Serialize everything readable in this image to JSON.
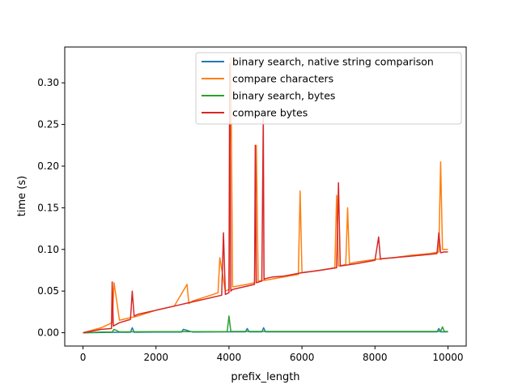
{
  "chart_data": {
    "type": "line",
    "title": "",
    "xlabel": "prefix_length",
    "ylabel": "time (s)",
    "xlim": [
      -500,
      10500
    ],
    "ylim": [
      -0.016,
      0.343
    ],
    "xticks": [
      0,
      2000,
      4000,
      6000,
      8000,
      10000
    ],
    "xtick_labels": [
      "0",
      "2000",
      "4000",
      "6000",
      "8000",
      "10000"
    ],
    "yticks": [
      0.0,
      0.05,
      0.1,
      0.15,
      0.2,
      0.25,
      0.3
    ],
    "ytick_labels": [
      "0.00",
      "0.05",
      "0.10",
      "0.15",
      "0.20",
      "0.25",
      "0.30"
    ],
    "grid": false,
    "legend_position": "top-right",
    "series": [
      {
        "name": "binary search, native string comparison",
        "color": "#1f77b4",
        "x": [
          0,
          1000,
          1300,
          1350,
          1400,
          2000,
          2700,
          2750,
          3000,
          4000,
          4450,
          4500,
          4550,
          4900,
          4950,
          5000,
          6000,
          7000,
          8000,
          9000,
          9700,
          9750,
          9800,
          10000
        ],
        "y": [
          0.0,
          0.0005,
          0.0005,
          0.006,
          0.0005,
          0.0008,
          0.0008,
          0.004,
          0.0008,
          0.001,
          0.001,
          0.005,
          0.001,
          0.001,
          0.006,
          0.001,
          0.001,
          0.001,
          0.001,
          0.001,
          0.001,
          0.005,
          0.001,
          0.001
        ]
      },
      {
        "name": "compare characters",
        "color": "#ff7f0e",
        "x": [
          0,
          500,
          800,
          850,
          1000,
          1500,
          2000,
          2500,
          2850,
          2900,
          3000,
          3500,
          3700,
          3750,
          3900,
          4000,
          4050,
          4100,
          4500,
          4700,
          4750,
          4800,
          5000,
          5500,
          5900,
          5950,
          6000,
          6500,
          6900,
          6950,
          7000,
          7200,
          7250,
          7300,
          7500,
          8000,
          8500,
          9000,
          9500,
          9750,
          9800,
          9850,
          10000
        ],
        "y": [
          0.0,
          0.006,
          0.012,
          0.06,
          0.015,
          0.02,
          0.027,
          0.032,
          0.058,
          0.035,
          0.038,
          0.045,
          0.048,
          0.09,
          0.05,
          0.052,
          0.33,
          0.055,
          0.058,
          0.06,
          0.225,
          0.062,
          0.063,
          0.067,
          0.07,
          0.17,
          0.072,
          0.075,
          0.078,
          0.165,
          0.08,
          0.082,
          0.15,
          0.083,
          0.085,
          0.088,
          0.09,
          0.093,
          0.095,
          0.097,
          0.205,
          0.1,
          0.1
        ]
      },
      {
        "name": "binary search, bytes",
        "color": "#2ca02c",
        "x": [
          0,
          500,
          800,
          850,
          1000,
          2000,
          3000,
          3500,
          3950,
          4000,
          4050,
          4100,
          5000,
          6000,
          7000,
          8000,
          9000,
          9800,
          9850,
          9900,
          10000
        ],
        "y": [
          0.0,
          0.0008,
          0.0008,
          0.004,
          0.001,
          0.0012,
          0.0012,
          0.0012,
          0.0012,
          0.02,
          0.0015,
          0.0015,
          0.0015,
          0.0015,
          0.0015,
          0.0015,
          0.0015,
          0.0015,
          0.007,
          0.0015,
          0.0015
        ]
      },
      {
        "name": "compare bytes",
        "color": "#d62728",
        "x": [
          0,
          500,
          780,
          800,
          830,
          1000,
          1300,
          1350,
          1400,
          1500,
          2000,
          2500,
          3000,
          3500,
          3700,
          3800,
          3850,
          3900,
          4000,
          4020,
          4050,
          4100,
          4500,
          4700,
          4720,
          4750,
          4900,
          4940,
          4960,
          5000,
          5200,
          5500,
          6000,
          6500,
          6950,
          7000,
          7050,
          7200,
          7500,
          8000,
          8100,
          8150,
          8200,
          8500,
          9000,
          9500,
          9700,
          9750,
          9800,
          9900,
          10000
        ],
        "y": [
          0.0,
          0.004,
          0.005,
          0.061,
          0.008,
          0.012,
          0.016,
          0.05,
          0.02,
          0.022,
          0.027,
          0.032,
          0.037,
          0.042,
          0.044,
          0.045,
          0.12,
          0.046,
          0.048,
          0.323,
          0.05,
          0.052,
          0.056,
          0.058,
          0.225,
          0.06,
          0.062,
          0.258,
          0.064,
          0.065,
          0.067,
          0.068,
          0.072,
          0.075,
          0.078,
          0.18,
          0.08,
          0.081,
          0.083,
          0.087,
          0.115,
          0.088,
          0.089,
          0.09,
          0.092,
          0.094,
          0.095,
          0.12,
          0.096,
          0.097,
          0.097
        ]
      }
    ]
  }
}
